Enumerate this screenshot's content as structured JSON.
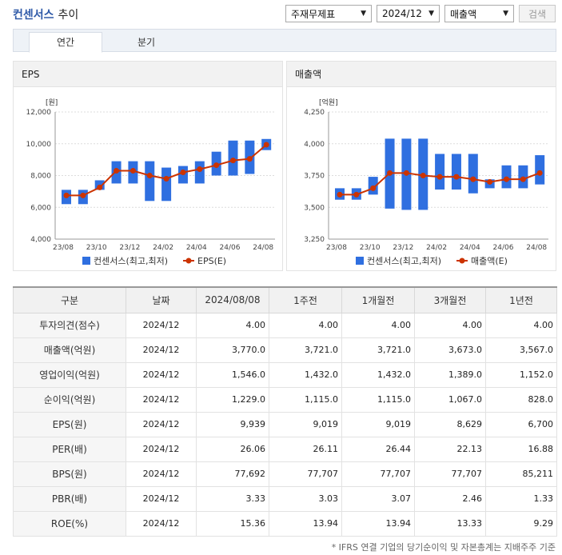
{
  "header": {
    "brand": "컨센서스",
    "title_suffix": "추이"
  },
  "controls": {
    "type_select": "주재무제표",
    "period_select": "2024/12",
    "metric_select": "매출액",
    "search_label": "검색"
  },
  "tabs": [
    "연간",
    "분기"
  ],
  "left_panel": {
    "title": "EPS"
  },
  "right_panel": {
    "title": "매출액"
  },
  "chart_data": [
    {
      "type": "bar",
      "title": "EPS",
      "unit_label": "[원]",
      "ylim": [
        4000,
        12000
      ],
      "yticks": [
        "12,000",
        "10,000",
        "8,000",
        "6,000",
        "4,000"
      ],
      "x_labels": [
        "23/08",
        "23/10",
        "23/12",
        "24/02",
        "24/04",
        "24/06",
        "24/08"
      ],
      "range_bars": [
        [
          6200,
          7100
        ],
        [
          6200,
          7100
        ],
        [
          7100,
          7700
        ],
        [
          7500,
          8900
        ],
        [
          7500,
          8900
        ],
        [
          6400,
          8900
        ],
        [
          6400,
          8500
        ],
        [
          7500,
          8600
        ],
        [
          7500,
          8900
        ],
        [
          8000,
          9500
        ],
        [
          8000,
          10200
        ],
        [
          8100,
          10200
        ],
        [
          9600,
          10300
        ]
      ],
      "eps_line": [
        6750,
        6750,
        7250,
        8300,
        8300,
        8000,
        7800,
        8200,
        8400,
        8650,
        8950,
        9050,
        9939
      ],
      "legend": [
        "컨센서스(최고,최저)",
        "EPS(E)"
      ],
      "grid": true
    },
    {
      "type": "bar",
      "title": "매출액",
      "unit_label": "[억원]",
      "ylim": [
        3250,
        4250
      ],
      "yticks": [
        "4,250",
        "4,000",
        "3,750",
        "3,500",
        "3,250"
      ],
      "x_labels": [
        "23/08",
        "23/10",
        "23/12",
        "24/02",
        "24/04",
        "24/06",
        "24/08"
      ],
      "range_bars": [
        [
          3560,
          3650
        ],
        [
          3560,
          3650
        ],
        [
          3600,
          3740
        ],
        [
          3490,
          4040
        ],
        [
          3480,
          4040
        ],
        [
          3480,
          4040
        ],
        [
          3640,
          3920
        ],
        [
          3640,
          3920
        ],
        [
          3610,
          3920
        ],
        [
          3650,
          3720
        ],
        [
          3650,
          3830
        ],
        [
          3650,
          3830
        ],
        [
          3680,
          3910
        ]
      ],
      "sales_line": [
        3600,
        3600,
        3650,
        3770,
        3770,
        3750,
        3740,
        3740,
        3721,
        3700,
        3721,
        3721,
        3770
      ],
      "legend": [
        "컨센서스(최고,최저)",
        "매출액(E)"
      ],
      "grid": true
    }
  ],
  "table": {
    "headers": [
      "구분",
      "날짜",
      "2024/08/08",
      "1주전",
      "1개월전",
      "3개월전",
      "1년전"
    ],
    "rows": [
      [
        "투자의견(점수)",
        "2024/12",
        "4.00",
        "4.00",
        "4.00",
        "4.00",
        "4.00"
      ],
      [
        "매출액(억원)",
        "2024/12",
        "3,770.0",
        "3,721.0",
        "3,721.0",
        "3,673.0",
        "3,567.0"
      ],
      [
        "영업이익(억원)",
        "2024/12",
        "1,546.0",
        "1,432.0",
        "1,432.0",
        "1,389.0",
        "1,152.0"
      ],
      [
        "순이익(억원)",
        "2024/12",
        "1,229.0",
        "1,115.0",
        "1,115.0",
        "1,067.0",
        "828.0"
      ],
      [
        "EPS(원)",
        "2024/12",
        "9,939",
        "9,019",
        "9,019",
        "8,629",
        "6,700"
      ],
      [
        "PER(배)",
        "2024/12",
        "26.06",
        "26.11",
        "26.44",
        "22.13",
        "16.88"
      ],
      [
        "BPS(원)",
        "2024/12",
        "77,692",
        "77,707",
        "77,707",
        "77,707",
        "85,211"
      ],
      [
        "PBR(배)",
        "2024/12",
        "3.33",
        "3.03",
        "3.07",
        "2.46",
        "1.33"
      ],
      [
        "ROE(%)",
        "2024/12",
        "15.36",
        "13.94",
        "13.94",
        "13.33",
        "9.29"
      ]
    ]
  },
  "footnote": "* IFRS 연결 기업의 당기순이익 및 자본총계는 지배주주 기준",
  "colors": {
    "bar": "#2f6fe0",
    "line": "#cc3300",
    "brand": "#2f5aa8"
  }
}
